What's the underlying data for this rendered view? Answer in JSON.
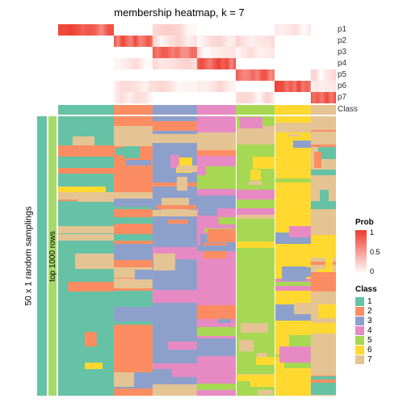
{
  "title": "membership heatmap, k = 7",
  "side_label_outer": "50 x 1 random samplings",
  "side_label_inner": "top 1000 rows",
  "prob_row_labels": [
    "p1",
    "p2",
    "p3",
    "p4",
    "p5",
    "p6",
    "p7"
  ],
  "class_label": "Class",
  "class_colors": [
    "#66c2a5",
    "#fc8d62",
    "#8da0cb",
    "#e78ac3",
    "#a6d854",
    "#ffd92f",
    "#e5c494"
  ],
  "class_widths": [
    0.2,
    0.14,
    0.16,
    0.14,
    0.14,
    0.13,
    0.09
  ],
  "heatmap": {
    "background_color": "#ffffff",
    "noise_stripes_per_col": 14,
    "cols": [
      {
        "w": 0.2,
        "dom": "#66c2a5",
        "alt": [
          "#e5c494",
          "#ffd92f",
          "#fc8d62"
        ],
        "prob_band": 0
      },
      {
        "w": 0.14,
        "dom": "#fc8d62",
        "alt": [
          "#8da0cb",
          "#e5c494",
          "#66c2a5"
        ],
        "prob_band": 1
      },
      {
        "w": 0.16,
        "dom": "#8da0cb",
        "alt": [
          "#fc8d62",
          "#e78ac3",
          "#e5c494",
          "#ffd92f"
        ],
        "prob_band": 2
      },
      {
        "w": 0.14,
        "dom": "#e78ac3",
        "alt": [
          "#8da0cb",
          "#a6d854",
          "#fc8d62"
        ],
        "prob_band": 3
      },
      {
        "w": 0.14,
        "dom": "#a6d854",
        "alt": [
          "#ffd92f",
          "#e78ac3",
          "#e5c494"
        ],
        "prob_band": 4
      },
      {
        "w": 0.13,
        "dom": "#ffd92f",
        "alt": [
          "#a6d854",
          "#e78ac3",
          "#e5c494",
          "#8da0cb"
        ],
        "prob_band": 5
      },
      {
        "w": 0.09,
        "dom": "#e5c494",
        "alt": [
          "#ffd92f",
          "#66c2a5",
          "#fc8d62"
        ],
        "prob_band": 6
      }
    ]
  },
  "legend": {
    "prob_title": "Prob",
    "prob_ticks": [
      "1",
      "0.5",
      "0"
    ],
    "class_title": "Class",
    "class_items": [
      "1",
      "2",
      "3",
      "4",
      "5",
      "6",
      "7"
    ]
  },
  "colors": {
    "prob_high": "#ee3b2c",
    "prob_low": "#ffffff",
    "side_bar": "#66c2a5"
  }
}
